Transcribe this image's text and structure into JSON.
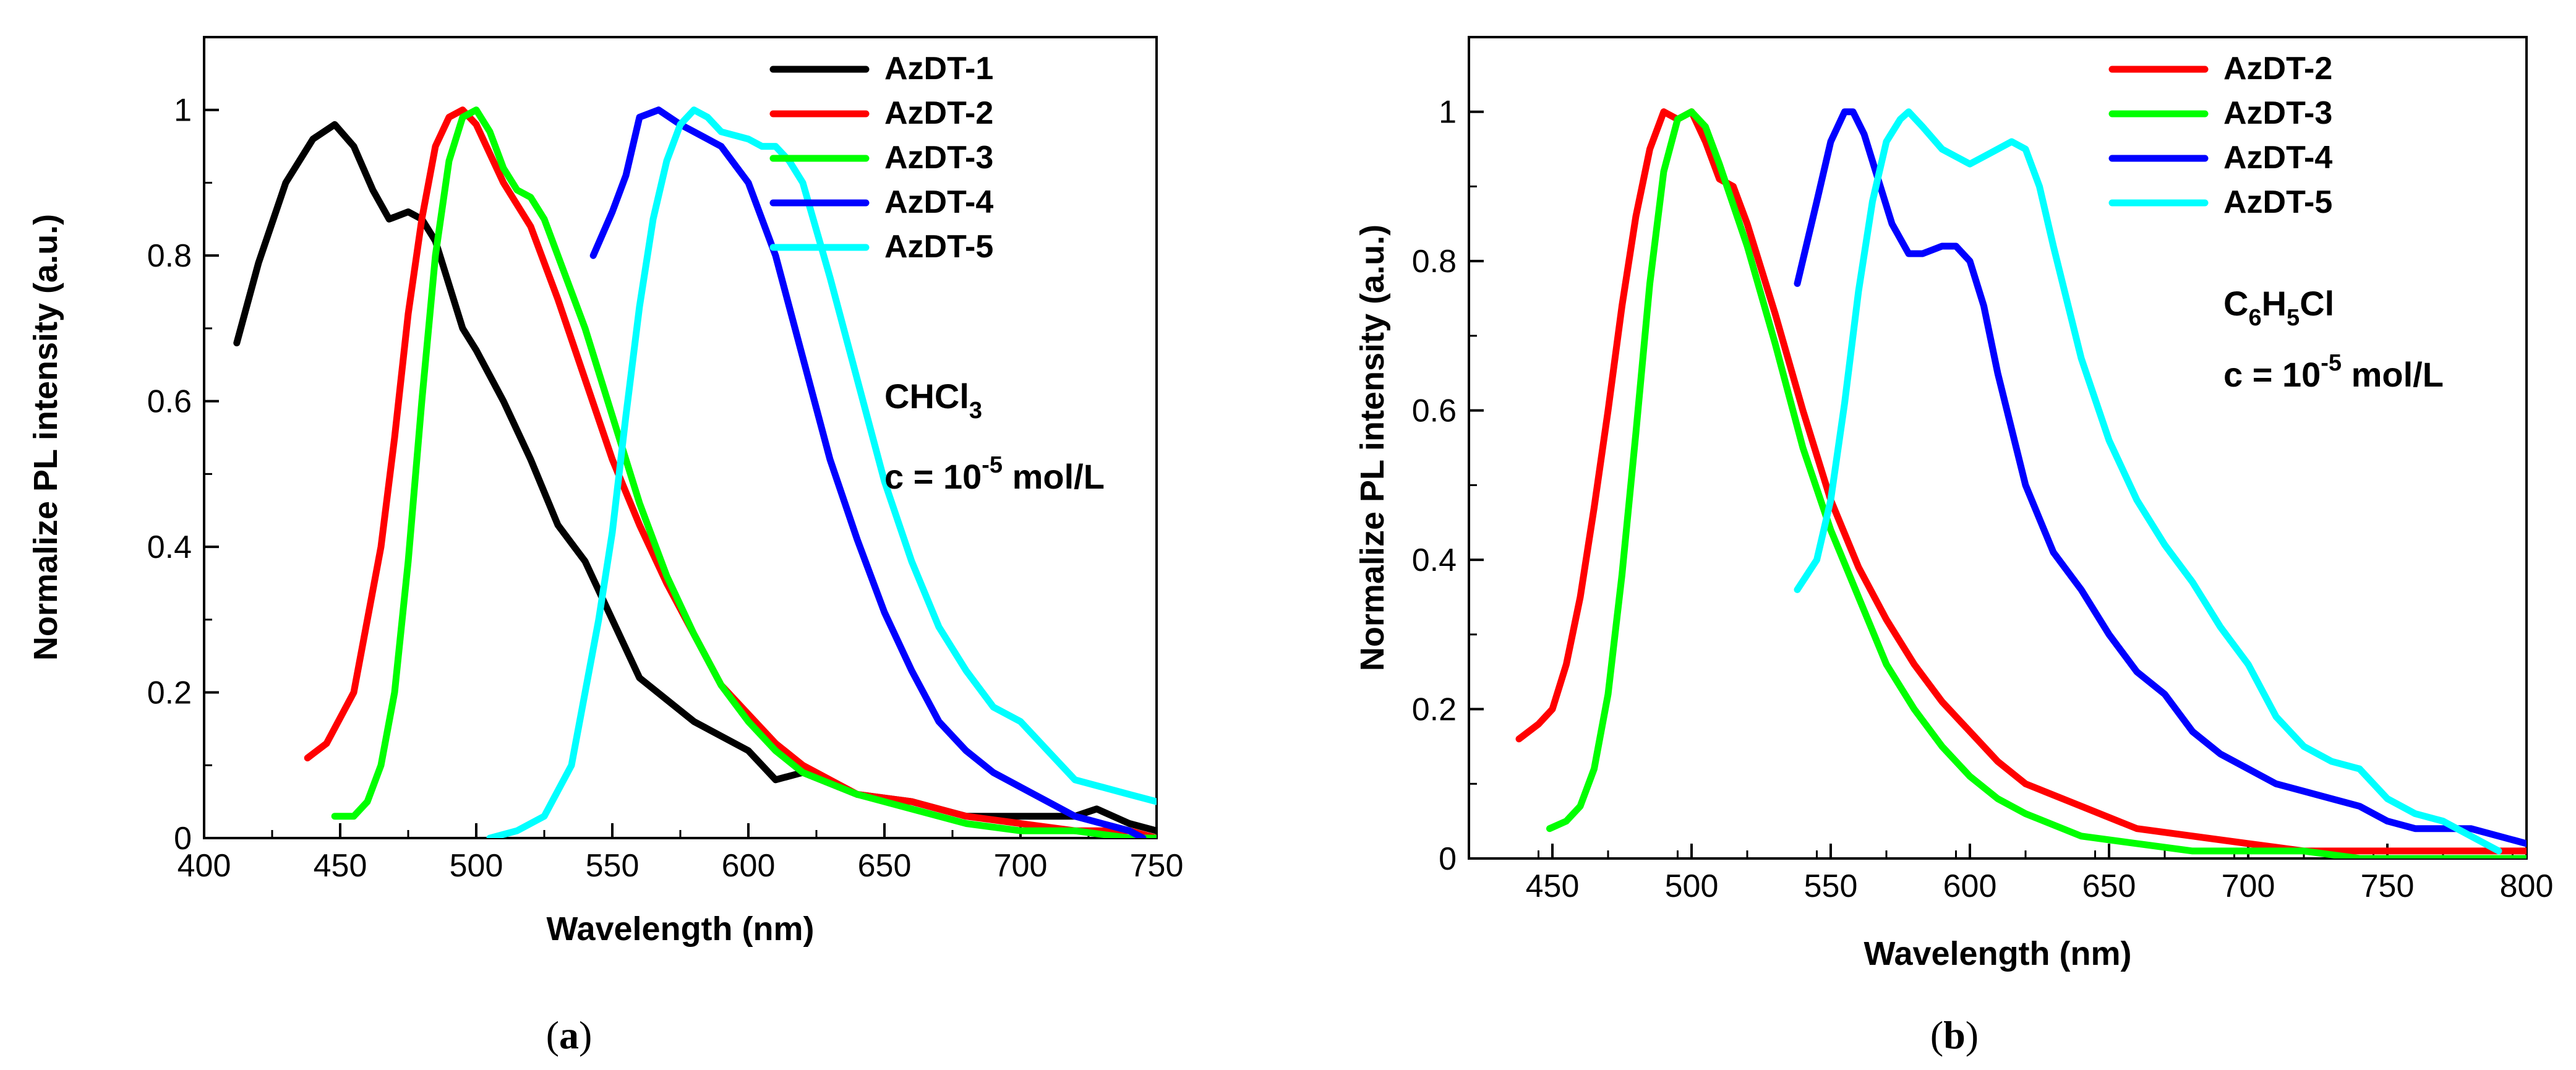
{
  "captions": [
    {
      "open": "(",
      "letter": "a",
      "close": ")"
    },
    {
      "open": "(",
      "letter": "b",
      "close": ")"
    }
  ],
  "chart_data": [
    {
      "type": "line",
      "xlabel": "Wavelength (nm)",
      "ylabel": "Normalize PL intensity (a.u.)",
      "xlim": [
        400,
        750
      ],
      "ylim": [
        0,
        1.1
      ],
      "xticks": [
        400,
        450,
        500,
        550,
        600,
        650,
        700,
        750
      ],
      "yticks": [
        0,
        0.2,
        0.4,
        0.6,
        0.8,
        1
      ],
      "ytick_labels": [
        "0",
        "0.2",
        "0.4",
        "0.6",
        "0.8",
        "1"
      ],
      "legend_position": "top-right",
      "annotation": {
        "solvent": "CHCl",
        "solvent_sub": "3",
        "solvent_tail": "",
        "conc_prefix": "c = 10",
        "conc_exp": "-5",
        "conc_suffix": " mol/L"
      },
      "series": [
        {
          "name": "AzDT-1",
          "color": "#000000",
          "x": [
            412,
            420,
            430,
            440,
            448,
            455,
            462,
            468,
            475,
            480,
            485,
            490,
            495,
            500,
            510,
            520,
            530,
            540,
            550,
            560,
            570,
            580,
            590,
            600,
            610,
            620,
            640,
            660,
            680,
            700,
            720,
            728,
            740,
            750
          ],
          "y": [
            0.68,
            0.79,
            0.9,
            0.96,
            0.98,
            0.95,
            0.89,
            0.85,
            0.86,
            0.85,
            0.82,
            0.76,
            0.7,
            0.67,
            0.6,
            0.52,
            0.43,
            0.38,
            0.3,
            0.22,
            0.19,
            0.16,
            0.14,
            0.12,
            0.08,
            0.09,
            0.06,
            0.05,
            0.03,
            0.03,
            0.03,
            0.04,
            0.02,
            0.01
          ]
        },
        {
          "name": "AzDT-2",
          "color": "#ff0000",
          "x": [
            438,
            445,
            455,
            465,
            470,
            475,
            480,
            485,
            490,
            495,
            500,
            505,
            510,
            520,
            530,
            540,
            550,
            560,
            570,
            580,
            590,
            600,
            610,
            620,
            640,
            660,
            680,
            700,
            720,
            740,
            750
          ],
          "y": [
            0.11,
            0.13,
            0.2,
            0.4,
            0.55,
            0.72,
            0.85,
            0.95,
            0.99,
            1.0,
            0.98,
            0.94,
            0.9,
            0.84,
            0.74,
            0.63,
            0.52,
            0.43,
            0.35,
            0.28,
            0.21,
            0.17,
            0.13,
            0.1,
            0.06,
            0.05,
            0.03,
            0.02,
            0.01,
            0.01,
            0.0
          ]
        },
        {
          "name": "AzDT-3",
          "color": "#00ff00",
          "x": [
            448,
            455,
            460,
            465,
            470,
            475,
            480,
            485,
            490,
            495,
            500,
            505,
            510,
            515,
            520,
            525,
            530,
            540,
            550,
            560,
            570,
            580,
            590,
            600,
            610,
            620,
            640,
            660,
            680,
            700,
            720,
            740,
            750
          ],
          "y": [
            0.03,
            0.03,
            0.05,
            0.1,
            0.2,
            0.38,
            0.6,
            0.8,
            0.93,
            0.99,
            1.0,
            0.97,
            0.92,
            0.89,
            0.88,
            0.85,
            0.8,
            0.7,
            0.58,
            0.46,
            0.36,
            0.28,
            0.21,
            0.16,
            0.12,
            0.09,
            0.06,
            0.04,
            0.02,
            0.01,
            0.01,
            0.0,
            0.0
          ]
        },
        {
          "name": "AzDT-4",
          "color": "#0000ff",
          "x": [
            543,
            550,
            555,
            560,
            567,
            575,
            580,
            590,
            600,
            610,
            620,
            630,
            640,
            650,
            660,
            670,
            680,
            690,
            700,
            710,
            720,
            730,
            740,
            745
          ],
          "y": [
            0.8,
            0.86,
            0.91,
            0.99,
            1.0,
            0.98,
            0.97,
            0.95,
            0.9,
            0.8,
            0.66,
            0.52,
            0.41,
            0.31,
            0.23,
            0.16,
            0.12,
            0.09,
            0.07,
            0.05,
            0.03,
            0.02,
            0.01,
            0.0
          ]
        },
        {
          "name": "AzDT-5",
          "color": "#00ffff",
          "x": [
            505,
            515,
            525,
            535,
            545,
            550,
            555,
            560,
            565,
            570,
            575,
            580,
            585,
            590,
            600,
            605,
            610,
            615,
            620,
            630,
            640,
            650,
            660,
            670,
            680,
            690,
            700,
            710,
            720,
            730,
            740,
            750
          ],
          "y": [
            0.0,
            0.01,
            0.03,
            0.1,
            0.3,
            0.42,
            0.58,
            0.73,
            0.85,
            0.93,
            0.98,
            1.0,
            0.99,
            0.97,
            0.96,
            0.95,
            0.95,
            0.93,
            0.9,
            0.77,
            0.63,
            0.49,
            0.38,
            0.29,
            0.23,
            0.18,
            0.16,
            0.12,
            0.08,
            0.07,
            0.06,
            0.05
          ]
        }
      ]
    },
    {
      "type": "line",
      "xlabel": "Wavelength (nm)",
      "ylabel": "Normalize PL intensity (a.u.)",
      "xlim": [
        420,
        800
      ],
      "ylim": [
        0,
        1.1
      ],
      "xticks": [
        450,
        500,
        550,
        600,
        650,
        700,
        750,
        800
      ],
      "yticks": [
        0,
        0.2,
        0.4,
        0.6,
        0.8,
        1
      ],
      "ytick_labels": [
        "0",
        "0.2",
        "0.4",
        "0.6",
        "0.8",
        "1"
      ],
      "legend_position": "top-right",
      "annotation": {
        "solvent": "C",
        "solvent_sub": "6",
        "solvent_tail": "H",
        "solvent_sub2": "5",
        "solvent_tail2": "Cl",
        "conc_prefix": "c = 10",
        "conc_exp": "-5",
        "conc_suffix": " mol/L"
      },
      "series": [
        {
          "name": "AzDT-2",
          "color": "#ff0000",
          "x": [
            438,
            445,
            450,
            455,
            460,
            465,
            470,
            475,
            480,
            485,
            490,
            495,
            500,
            505,
            510,
            515,
            520,
            530,
            540,
            550,
            560,
            570,
            580,
            590,
            600,
            610,
            620,
            640,
            660,
            680,
            700,
            720,
            740,
            760,
            780,
            800
          ],
          "y": [
            0.16,
            0.18,
            0.2,
            0.26,
            0.35,
            0.47,
            0.6,
            0.74,
            0.86,
            0.95,
            1.0,
            0.99,
            1.0,
            0.96,
            0.91,
            0.9,
            0.85,
            0.73,
            0.6,
            0.48,
            0.39,
            0.32,
            0.26,
            0.21,
            0.17,
            0.13,
            0.1,
            0.07,
            0.04,
            0.03,
            0.02,
            0.01,
            0.01,
            0.01,
            0.01,
            0.01
          ]
        },
        {
          "name": "AzDT-3",
          "color": "#00ff00",
          "x": [
            449,
            455,
            460,
            465,
            470,
            475,
            480,
            485,
            490,
            495,
            500,
            505,
            510,
            520,
            530,
            540,
            550,
            560,
            570,
            580,
            590,
            600,
            610,
            620,
            640,
            660,
            680,
            700,
            720,
            740,
            760,
            780,
            800
          ],
          "y": [
            0.04,
            0.05,
            0.07,
            0.12,
            0.22,
            0.38,
            0.57,
            0.77,
            0.92,
            0.99,
            1.0,
            0.98,
            0.93,
            0.82,
            0.69,
            0.55,
            0.44,
            0.35,
            0.26,
            0.2,
            0.15,
            0.11,
            0.08,
            0.06,
            0.03,
            0.02,
            0.01,
            0.01,
            0.01,
            0.0,
            0.0,
            0.0,
            0.0
          ]
        },
        {
          "name": "AzDT-4",
          "color": "#0000ff",
          "x": [
            538,
            545,
            550,
            555,
            558,
            562,
            567,
            572,
            578,
            583,
            590,
            595,
            600,
            605,
            610,
            620,
            630,
            640,
            650,
            660,
            670,
            680,
            690,
            700,
            710,
            720,
            730,
            740,
            750,
            760,
            770,
            780,
            790,
            800
          ],
          "y": [
            0.77,
            0.88,
            0.96,
            1.0,
            1.0,
            0.97,
            0.91,
            0.85,
            0.81,
            0.81,
            0.82,
            0.82,
            0.8,
            0.74,
            0.65,
            0.5,
            0.41,
            0.36,
            0.3,
            0.25,
            0.22,
            0.17,
            0.14,
            0.12,
            0.1,
            0.09,
            0.08,
            0.07,
            0.05,
            0.04,
            0.04,
            0.04,
            0.03,
            0.02
          ]
        },
        {
          "name": "AzDT-5",
          "color": "#00ffff",
          "x": [
            538,
            545,
            550,
            555,
            560,
            565,
            570,
            575,
            578,
            583,
            590,
            595,
            600,
            605,
            610,
            615,
            620,
            625,
            630,
            640,
            650,
            660,
            670,
            680,
            690,
            700,
            710,
            720,
            730,
            740,
            750,
            760,
            770,
            780,
            790
          ],
          "y": [
            0.36,
            0.4,
            0.48,
            0.61,
            0.76,
            0.88,
            0.96,
            0.99,
            1.0,
            0.98,
            0.95,
            0.94,
            0.93,
            0.94,
            0.95,
            0.96,
            0.95,
            0.9,
            0.82,
            0.67,
            0.56,
            0.48,
            0.42,
            0.37,
            0.31,
            0.26,
            0.19,
            0.15,
            0.13,
            0.12,
            0.08,
            0.06,
            0.05,
            0.03,
            0.01
          ]
        }
      ]
    }
  ]
}
